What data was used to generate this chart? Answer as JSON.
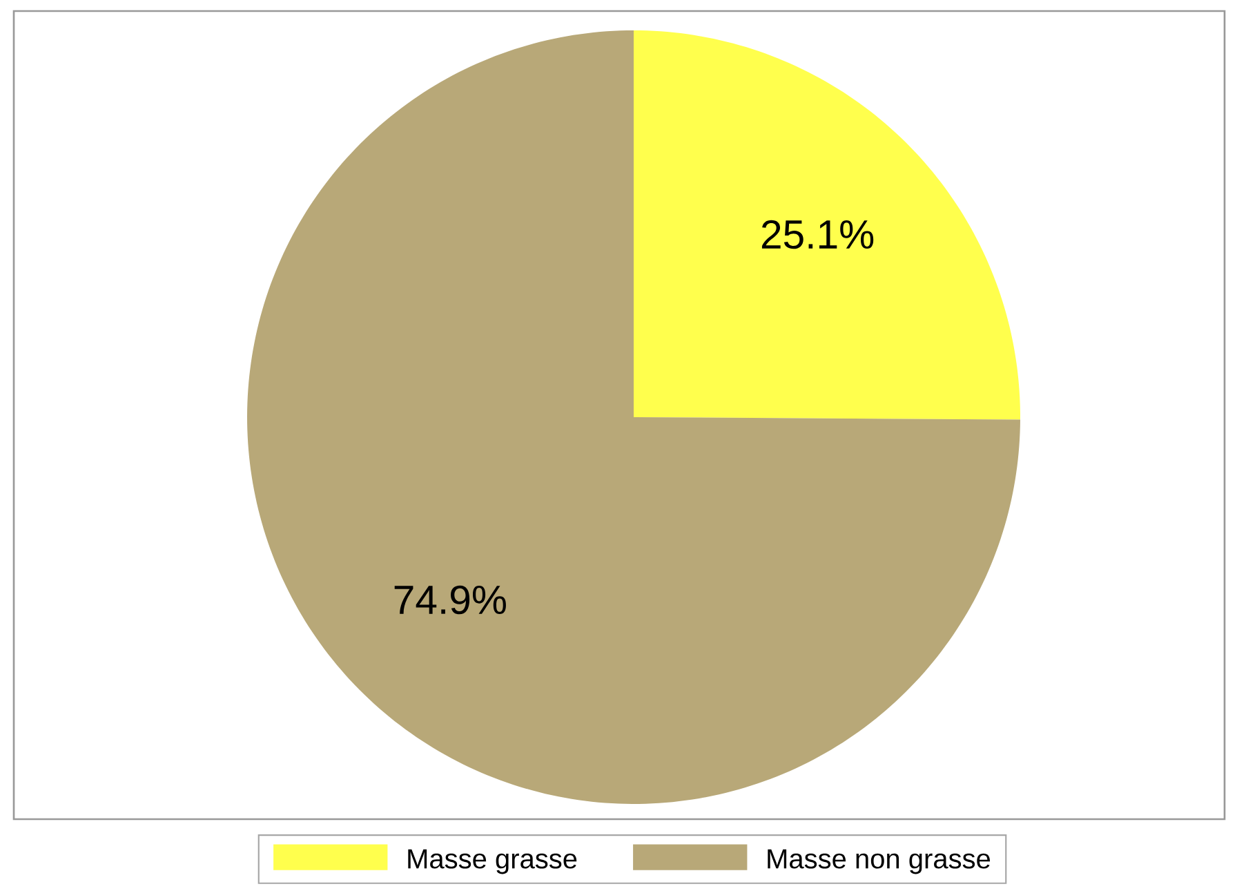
{
  "chart_data": {
    "type": "pie",
    "categories": [
      "Masse grasse",
      "Masse non grasse"
    ],
    "values": [
      25.1,
      74.9
    ],
    "colors": [
      "#ffff4d",
      "#b8a878"
    ],
    "value_labels": [
      "25.1%",
      "74.9%"
    ],
    "legend": "bottom"
  }
}
